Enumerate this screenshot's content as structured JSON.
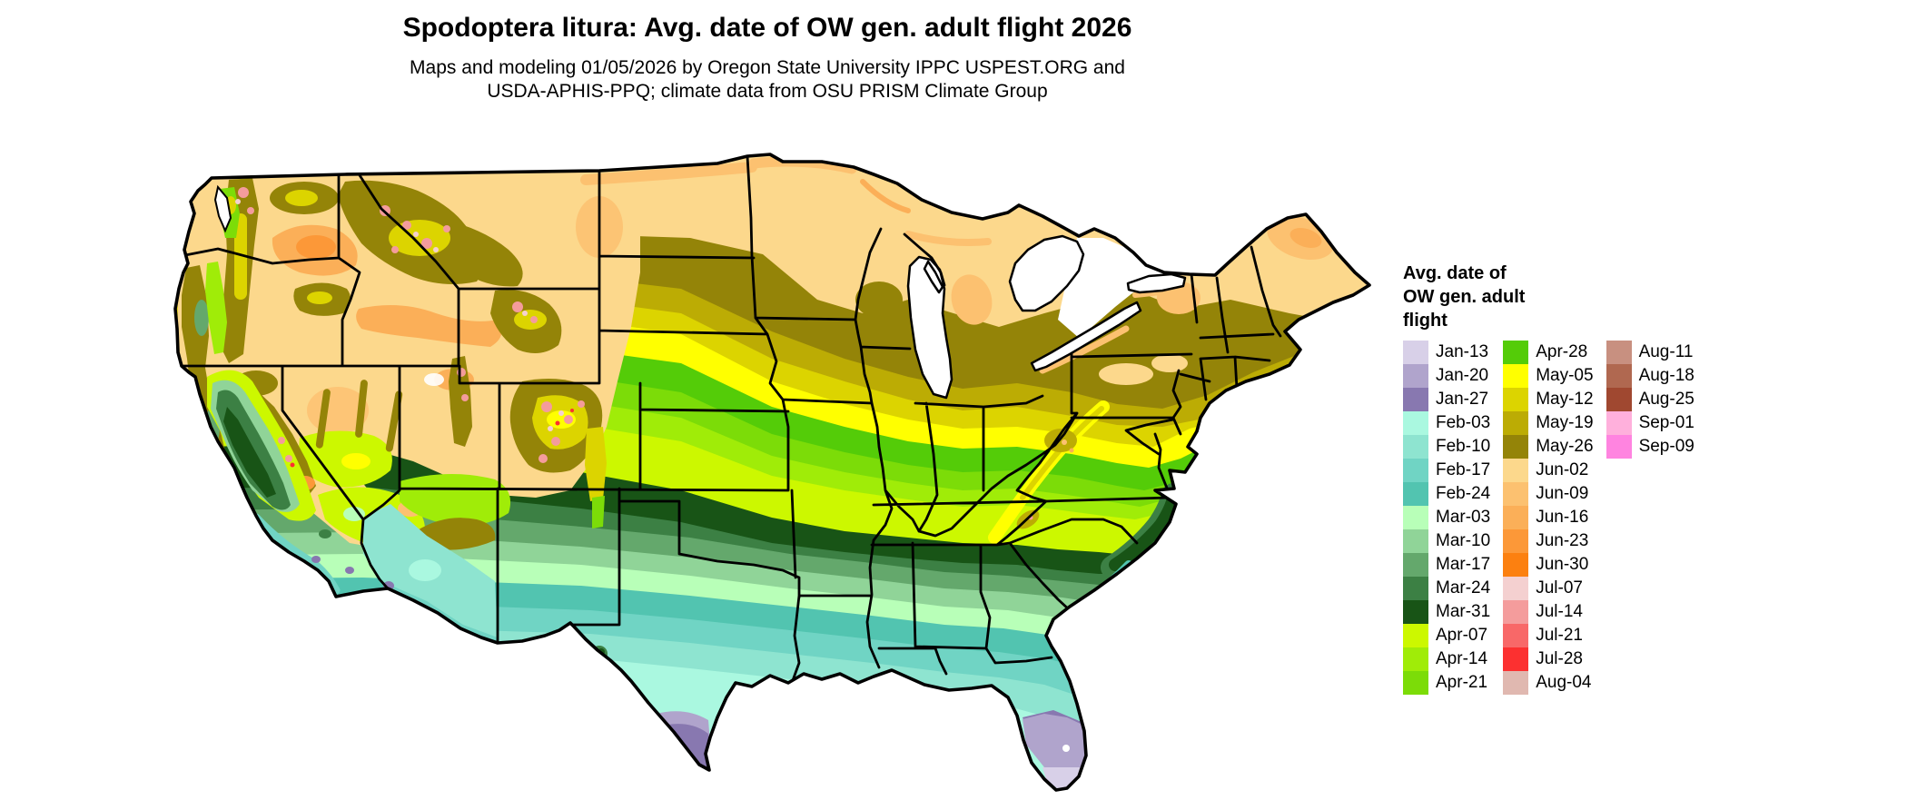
{
  "header": {
    "title": "Spodoptera litura: Avg. date of OW gen. adult flight 2026",
    "subtitle_line1": "Maps and modeling 01/05/2026 by Oregon State University IPPC USPEST.ORG and",
    "subtitle_line2": "USDA-APHIS-PPQ; climate data from OSU PRISM Climate Group"
  },
  "legend": {
    "title": "Avg. date of\nOW gen. adult\nflight",
    "columns": [
      [
        {
          "date": "Jan-13",
          "color": "#d8d0e8"
        },
        {
          "date": "Jan-20",
          "color": "#b0a4cc"
        },
        {
          "date": "Jan-27",
          "color": "#8878b0"
        },
        {
          "date": "Feb-03",
          "color": "#aaf8e0"
        },
        {
          "date": "Feb-10",
          "color": "#8ee4d0"
        },
        {
          "date": "Feb-17",
          "color": "#70d4c4"
        },
        {
          "date": "Feb-24",
          "color": "#52c4b0"
        },
        {
          "date": "Mar-03",
          "color": "#b8ffb8"
        },
        {
          "date": "Mar-10",
          "color": "#90d498"
        },
        {
          "date": "Mar-17",
          "color": "#64a86c"
        },
        {
          "date": "Mar-24",
          "color": "#3c8044"
        },
        {
          "date": "Mar-31",
          "color": "#185416"
        },
        {
          "date": "Apr-07",
          "color": "#ccf800"
        },
        {
          "date": "Apr-14",
          "color": "#a0ec08"
        },
        {
          "date": "Apr-21",
          "color": "#7cdc08"
        }
      ],
      [
        {
          "date": "Apr-28",
          "color": "#54cc08"
        },
        {
          "date": "May-05",
          "color": "#ffff00"
        },
        {
          "date": "May-12",
          "color": "#dcd400"
        },
        {
          "date": "May-19",
          "color": "#bcac04"
        },
        {
          "date": "May-26",
          "color": "#948408"
        },
        {
          "date": "Jun-02",
          "color": "#fcd88c"
        },
        {
          "date": "Jun-09",
          "color": "#fcc170"
        },
        {
          "date": "Jun-16",
          "color": "#fbaf58"
        },
        {
          "date": "Jun-23",
          "color": "#fc9838"
        },
        {
          "date": "Jun-30",
          "color": "#fc8010"
        },
        {
          "date": "Jul-07",
          "color": "#f4d0d0"
        },
        {
          "date": "Jul-14",
          "color": "#f49c9c"
        },
        {
          "date": "Jul-21",
          "color": "#f86868"
        },
        {
          "date": "Jul-28",
          "color": "#fc3030"
        },
        {
          "date": "Aug-04",
          "color": "#e0b8b0"
        }
      ],
      [
        {
          "date": "Aug-11",
          "color": "#c89080"
        },
        {
          "date": "Aug-18",
          "color": "#b06850"
        },
        {
          "date": "Aug-25",
          "color": "#a04830"
        },
        {
          "date": "Sep-01",
          "color": "#ffb0dc"
        },
        {
          "date": "Sep-09",
          "color": "#ff84e0"
        }
      ]
    ]
  }
}
